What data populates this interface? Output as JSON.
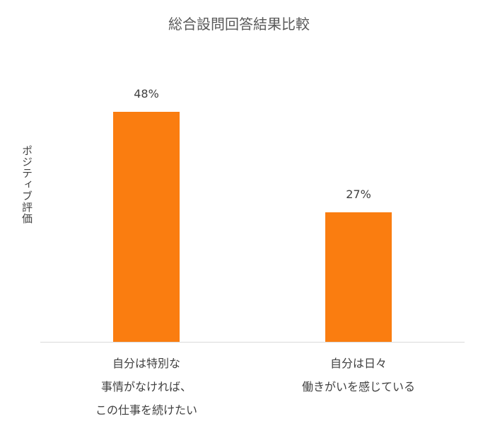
{
  "chart_data": {
    "type": "bar",
    "title": "総合設問回答結果比較",
    "ylabel": "ポジティブ評価",
    "categories": [
      "自分は特別な\n事情がなければ、\nこの仕事を続けたい",
      "自分は日々\n働きがいを感じている"
    ],
    "values": [
      48,
      27
    ],
    "value_labels": [
      "48%",
      "27%"
    ],
    "color": "#fa7d10"
  }
}
